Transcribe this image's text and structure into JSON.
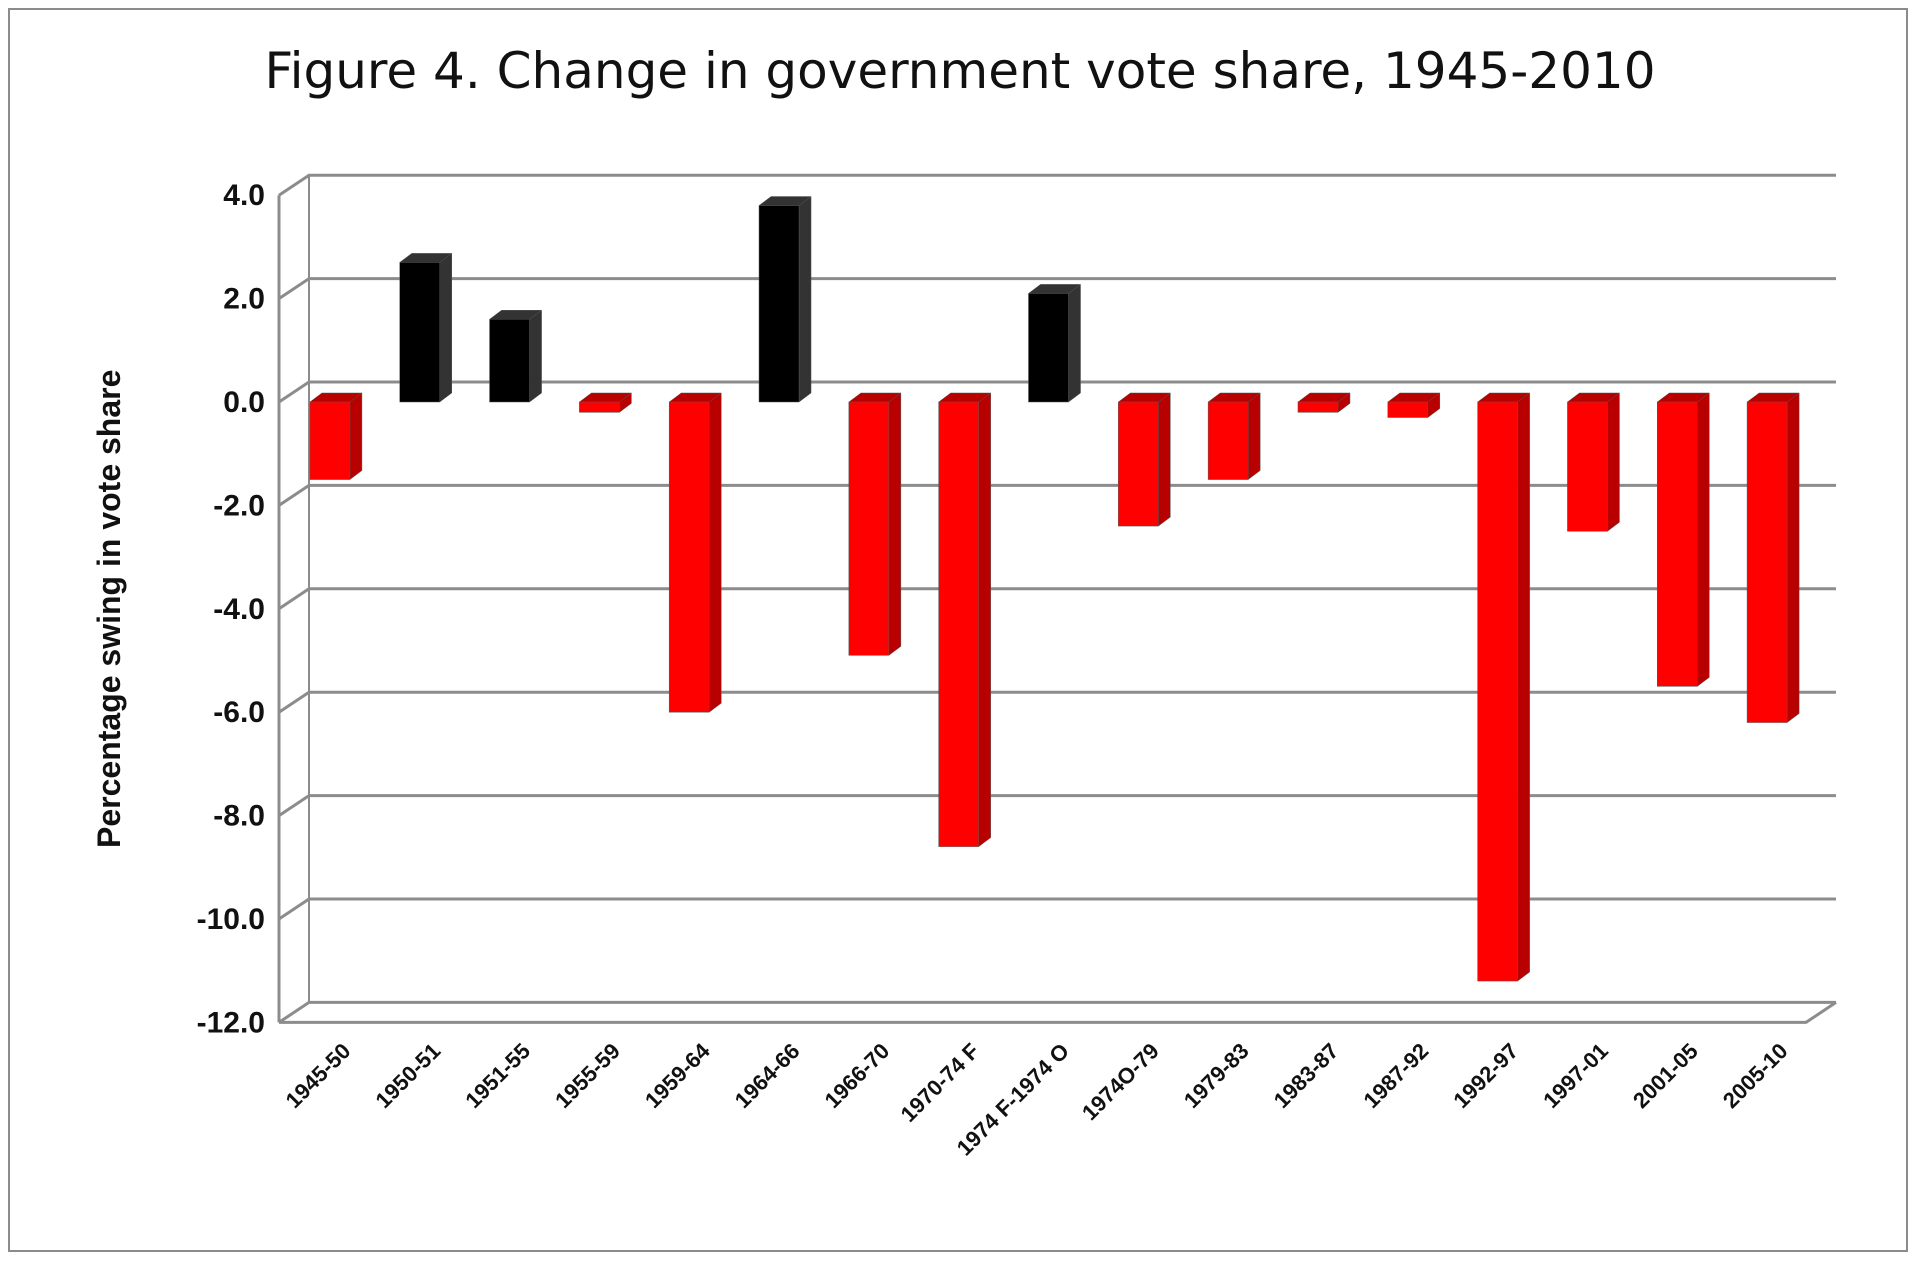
{
  "chart_data": {
    "type": "bar",
    "title": "Figure 4. Change in government vote share, 1945-2010",
    "xlabel": "",
    "ylabel": "Percentage swing in vote share",
    "ylim": [
      -12,
      4
    ],
    "yticks": [
      "4.0",
      "2.0",
      "0.0",
      "-2.0",
      "-4.0",
      "-6.0",
      "-8.0",
      "-10.0",
      "-12.0"
    ],
    "grid": true,
    "three_d": true,
    "categories": [
      "1945-50",
      "1950-51",
      "1951-55",
      "1955-59",
      "1959-64",
      "1964-66",
      "1966-70",
      "1970-74 F",
      "1974 F-1974 O",
      "1974O-79",
      "1979-83",
      "1983-87",
      "1987-92",
      "1992-97",
      "1997-01",
      "2001-05",
      "2005-10"
    ],
    "values": [
      -1.5,
      2.7,
      1.6,
      -0.2,
      -6.0,
      3.8,
      -4.9,
      -8.6,
      2.1,
      -2.4,
      -1.5,
      -0.2,
      -0.3,
      -11.2,
      -2.5,
      -5.5,
      -6.2
    ],
    "colors": {
      "positive": "#000000",
      "negative": "#ff0000",
      "negative_side": "#b80000",
      "positive_side": "#333333",
      "grid": "#8c8c8c"
    }
  }
}
